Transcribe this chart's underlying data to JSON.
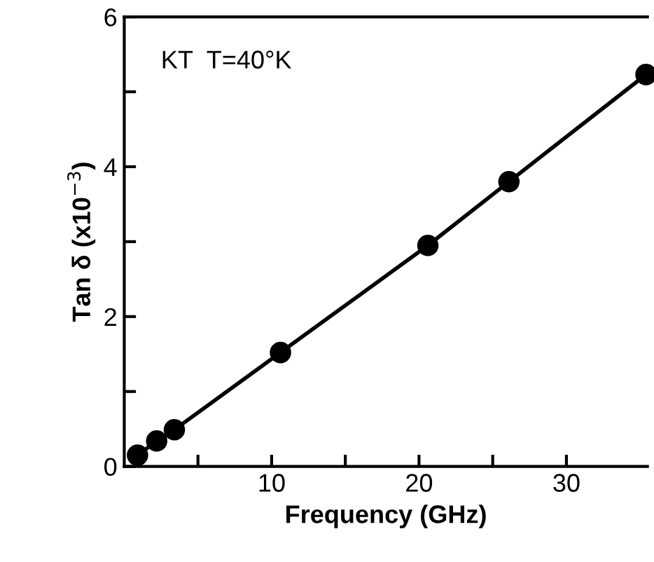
{
  "chart_data": {
    "type": "line",
    "xlabel": "Frequency (GHz)",
    "ylabel": "Tan δ (x10$^{−3}$)",
    "annotations": [
      "KT  T=40°K"
    ],
    "x": [
      0.9,
      2.2,
      3.4,
      10.6,
      20.6,
      26.1,
      35.4
    ],
    "series": [
      {
        "color": "#000000",
        "values": [
          0.15,
          0.34,
          0.49,
          1.52,
          2.95,
          3.8,
          5.23
        ]
      }
    ],
    "marker": "circle",
    "line_style": "solid",
    "grid": false,
    "legend": false,
    "xlim": [
      0,
      35.5
    ],
    "xticks": [
      {
        "value": 5,
        "label": null
      },
      10,
      {
        "value": 15,
        "label": null
      },
      20,
      {
        "value": 25,
        "label": null
      },
      30
    ],
    "ylim": [
      0,
      6
    ],
    "yticks": [
      0,
      {
        "value": 1,
        "label": null
      },
      2,
      {
        "value": 3,
        "label": null
      },
      4,
      {
        "value": 5,
        "label": null
      },
      6
    ]
  }
}
